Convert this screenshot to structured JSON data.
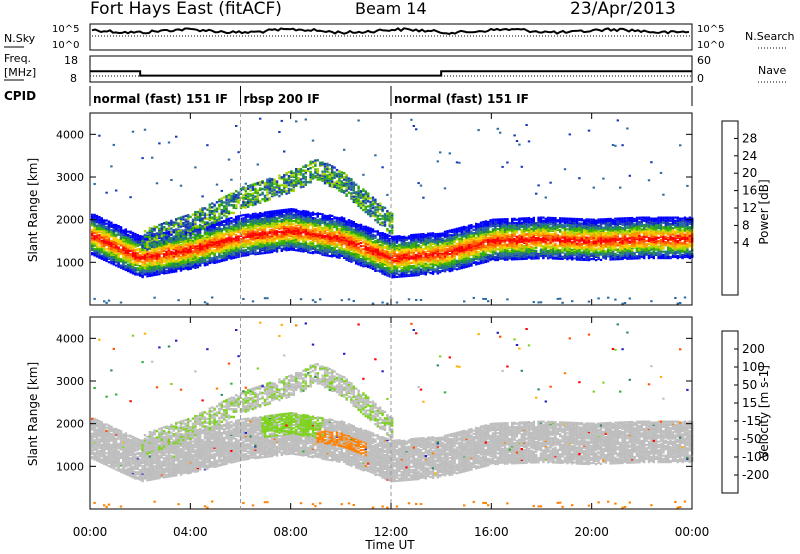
{
  "header": {
    "station": "Fort Hays East (fitACF)",
    "beam": "Beam 14",
    "date": "23/Apr/2013"
  },
  "noise_panel": {
    "left_label": "N.Sky",
    "right_label": "N.Search",
    "left_ticks": [
      "10^5",
      "10^0"
    ],
    "right_ticks": [
      "10^5",
      "10^0"
    ]
  },
  "freq_panel": {
    "left_label_line1": "Freq.",
    "left_label_line2": "[MHz]",
    "left_ticks": [
      "18",
      "8"
    ],
    "right_label": "Nave",
    "right_ticks": [
      "60",
      "0"
    ],
    "cpid_label": "CPID"
  },
  "cpid_segments": [
    {
      "label": "normal (fast) 151 IF",
      "start_hour": 0,
      "end_hour": 6
    },
    {
      "label": "rbsp 200 IF",
      "start_hour": 6,
      "end_hour": 12
    },
    {
      "label": "normal (fast) 151 IF",
      "start_hour": 12,
      "end_hour": 24
    }
  ],
  "power_colorbar": {
    "label": "Power [dB]",
    "ticks": [
      "28",
      "24",
      "20",
      "16",
      "12",
      "8",
      "4"
    ],
    "colors": [
      "#ff0000",
      "#ff5a00",
      "#ff9600",
      "#ffcc00",
      "#a8d400",
      "#38b000",
      "#208850",
      "#2a6aa0",
      "#1838b8",
      "#0000ff"
    ]
  },
  "velocity_colorbar": {
    "label": "Velocity [m s-1]",
    "ticks": [
      "200",
      "100",
      "50",
      "15",
      "-15",
      "-50",
      "-100",
      "-200"
    ],
    "colors": [
      "#2020c0",
      "#2e8b57",
      "#30b030",
      "#7ed321",
      "#bebebe",
      "#ffb000",
      "#ff8000",
      "#ff5000",
      "#ff0000"
    ]
  },
  "chart_data": {
    "type": "heatmap",
    "xlabel": "Time UT",
    "ylabel": "Slant Range [km]",
    "x_tick_labels": [
      "00:00",
      "04:00",
      "08:00",
      "12:00",
      "16:00",
      "20:00",
      "00:00"
    ],
    "x_ticks_hours": [
      0,
      4,
      8,
      12,
      16,
      20,
      24
    ],
    "xlim_hours": [
      0,
      24
    ],
    "y_ticks": [
      1000,
      2000,
      3000,
      4000
    ],
    "ylim_km": [
      0,
      4500
    ],
    "frequency_mhz": [
      {
        "start_hour": 0,
        "end_hour": 2,
        "value": 12
      },
      {
        "start_hour": 2,
        "end_hour": 14,
        "value": 10
      },
      {
        "start_hour": 14,
        "end_hour": 24,
        "value": 12
      }
    ],
    "nave": 11,
    "power_features": [
      {
        "name": "main echo band",
        "hours": [
          0,
          2,
          4,
          6,
          8,
          10,
          12,
          14,
          16,
          18,
          20,
          22,
          24
        ],
        "range_km": [
          1650,
          1100,
          1300,
          1600,
          1750,
          1550,
          1100,
          1200,
          1500,
          1550,
          1500,
          1550,
          1550
        ],
        "peak_db": 28
      },
      {
        "name": "upper echo band",
        "hours": [
          2,
          4,
          6,
          8,
          9,
          10,
          12
        ],
        "range_km": [
          1500,
          1900,
          2500,
          2900,
          3200,
          2900,
          1900
        ],
        "peak_db": 14
      }
    ],
    "velocity_features": [
      {
        "name": "main band",
        "velocity_ms": [
          -15,
          15
        ]
      },
      {
        "name": "07:00-09:30 lower band",
        "velocity_ms": [
          15,
          50
        ]
      },
      {
        "name": "09:00-11:00 lower band",
        "velocity_ms": [
          -50,
          -15
        ]
      }
    ]
  }
}
